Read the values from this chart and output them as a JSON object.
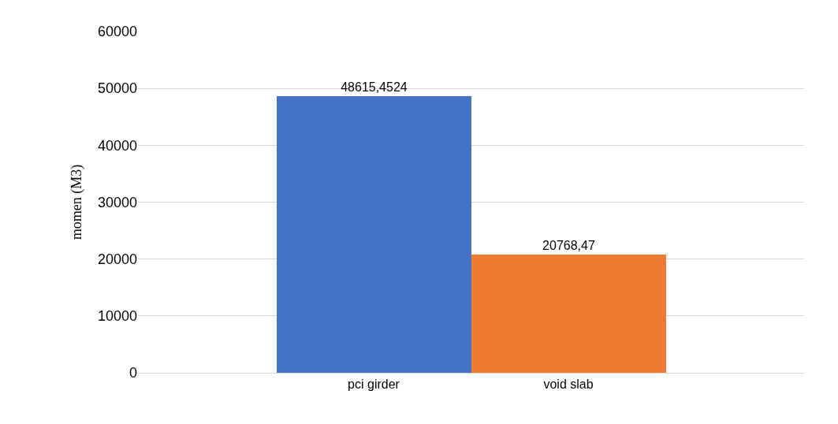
{
  "chart_data": {
    "type": "bar",
    "ylabel": "momen (M3)",
    "categories": [
      "pci girder",
      "void slab"
    ],
    "values": [
      48615.4524,
      20768.47
    ],
    "colors": [
      "#4472c4",
      "#ed7d31"
    ],
    "value_labels": [
      "48615,4524",
      "20768,47"
    ],
    "ylim": [
      0,
      60000
    ],
    "yticks": [
      0,
      10000,
      20000,
      30000,
      40000,
      50000,
      60000
    ],
    "grid": "y",
    "legend": false
  }
}
